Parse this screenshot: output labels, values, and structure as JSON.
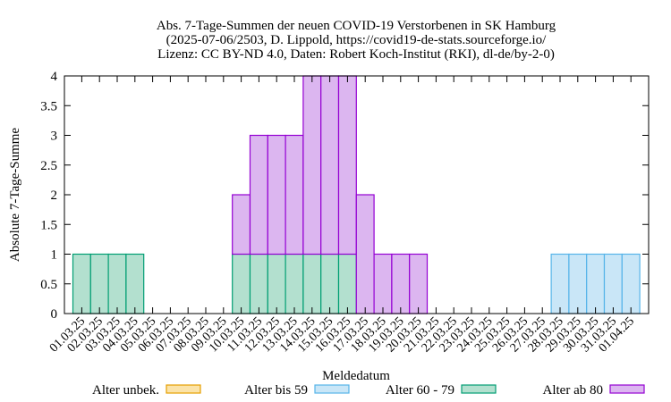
{
  "chart_data": {
    "type": "bar",
    "stacked": true,
    "title_lines": [
      "Abs. 7-Tage-Summen der neuen COVID-19 Verstorbenen in SK Hamburg",
      "(2025-07-06/2503, D. Lippold, https://covid19-de-stats.sourceforge.io/",
      "Lizenz: CC BY-ND 4.0, Daten: Robert Koch-Institut (RKI), dl-de/by-2-0)"
    ],
    "xlabel": "Meldedatum",
    "ylabel": "Absolute 7-Tage-Summe",
    "ylim": [
      0,
      4
    ],
    "yticks": [
      "0",
      "0.5",
      "1",
      "1.5",
      "2",
      "2.5",
      "3",
      "3.5",
      "4"
    ],
    "grid": false,
    "legend_position": "bottom",
    "categories": [
      "01.03.25",
      "02.03.25",
      "03.03.25",
      "04.03.25",
      "05.03.25",
      "06.03.25",
      "07.03.25",
      "08.03.25",
      "09.03.25",
      "10.03.25",
      "11.03.25",
      "12.03.25",
      "13.03.25",
      "14.03.25",
      "15.03.25",
      "16.03.25",
      "17.03.25",
      "18.03.25",
      "19.03.25",
      "20.03.25",
      "21.03.25",
      "22.03.25",
      "23.03.25",
      "24.03.25",
      "25.03.25",
      "26.03.25",
      "27.03.25",
      "28.03.25",
      "29.03.25",
      "30.03.25",
      "31.03.25",
      "01.04.25"
    ],
    "series": [
      {
        "name": "Alter unbek.",
        "fill": "#fbe3a8",
        "stroke": "#e69f00",
        "values": [
          0,
          0,
          0,
          0,
          0,
          0,
          0,
          0,
          0,
          0,
          0,
          0,
          0,
          0,
          0,
          0,
          0,
          0,
          0,
          0,
          0,
          0,
          0,
          0,
          0,
          0,
          0,
          0,
          0,
          0,
          0,
          0
        ]
      },
      {
        "name": "Alter bis 59",
        "fill": "#c9e6f7",
        "stroke": "#56b4e9",
        "values": [
          0,
          0,
          0,
          0,
          0,
          0,
          0,
          0,
          0,
          0,
          0,
          0,
          0,
          0,
          0,
          0,
          0,
          0,
          0,
          0,
          0,
          0,
          0,
          0,
          0,
          0,
          0,
          1,
          1,
          1,
          1,
          1
        ]
      },
      {
        "name": "Alter 60 - 79",
        "fill": "#b3e0cf",
        "stroke": "#009e73",
        "values": [
          1,
          1,
          1,
          1,
          0,
          0,
          0,
          0,
          0,
          1,
          1,
          1,
          1,
          1,
          1,
          1,
          0,
          0,
          0,
          0,
          0,
          0,
          0,
          0,
          0,
          0,
          0,
          0,
          0,
          0,
          0,
          0
        ]
      },
      {
        "name": "Alter ab 80",
        "fill": "#dcb6f0",
        "stroke": "#9400d3",
        "values": [
          0,
          0,
          0,
          0,
          0,
          0,
          0,
          0,
          0,
          1,
          2,
          2,
          2,
          3,
          3,
          3,
          2,
          1,
          1,
          1,
          0,
          0,
          0,
          0,
          0,
          0,
          0,
          0,
          0,
          0,
          0,
          0
        ]
      }
    ]
  }
}
